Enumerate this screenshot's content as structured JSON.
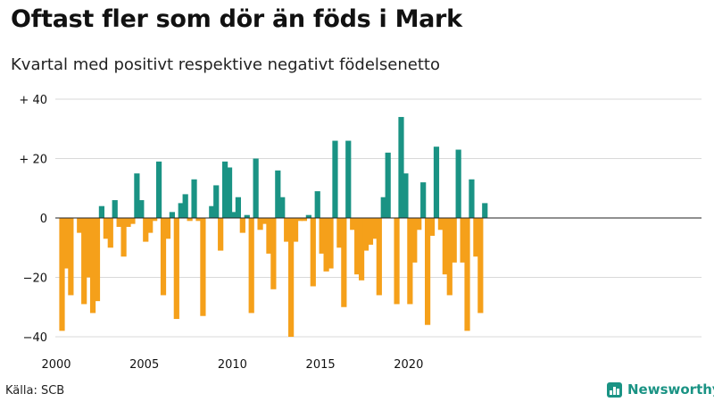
{
  "header": {
    "title": "Oftast fler som dör än föds i Mark",
    "subtitle": "Kvartal med positivt respektive negativt födelsenetto"
  },
  "footer": {
    "source": "Källa: SCB",
    "brand": "Newsworthy"
  },
  "colors": {
    "positive": "#1a9384",
    "negative": "#f5a01a",
    "brand": "#1a9384"
  },
  "chart_data": {
    "type": "bar",
    "x_ticks": [
      "2000",
      "2005",
      "2010",
      "2015",
      "2020"
    ],
    "y_ticks": [
      {
        "value": 40,
        "label": "+ 40"
      },
      {
        "value": 20,
        "label": "+ 20"
      },
      {
        "value": 0,
        "label": "0"
      },
      {
        "value": -20,
        "label": "−20"
      },
      {
        "value": -40,
        "label": "−40"
      }
    ],
    "ylim": [
      -40,
      40
    ],
    "first_quarter": "2000 Q1",
    "values": [
      -38,
      -17,
      -26,
      0,
      -5,
      -29,
      -20,
      -32,
      -28,
      4,
      -7,
      -10,
      6,
      -3,
      -13,
      -3,
      -2,
      15,
      6,
      -8,
      -5,
      -1,
      19,
      -26,
      -7,
      2,
      -34,
      5,
      8,
      -1,
      13,
      -1,
      -33,
      0,
      4,
      11,
      -11,
      19,
      17,
      2,
      7,
      -5,
      1,
      -32,
      20,
      -4,
      -2,
      -12,
      -24,
      16,
      7,
      -8,
      -40,
      -8,
      -1,
      -1,
      1,
      -23,
      9,
      -12,
      -18,
      -17,
      26,
      -10,
      -30,
      26,
      -4,
      -19,
      -21,
      -11,
      -9,
      -7,
      -26,
      7,
      22,
      0,
      -29,
      34,
      15,
      -29,
      -15,
      -4,
      12,
      -36,
      -6,
      24,
      -4,
      -19,
      -26,
      -15,
      23,
      -15,
      -38,
      13,
      -13,
      -32,
      5
    ]
  }
}
